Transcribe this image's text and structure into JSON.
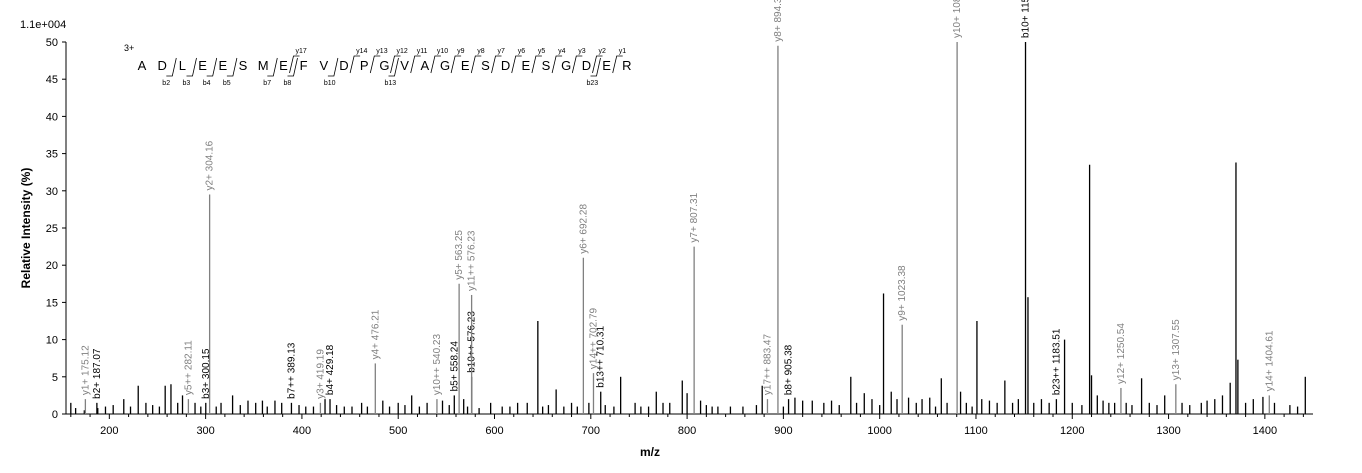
{
  "chart_data": {
    "type": "bar",
    "scale_label": "1.1e+004",
    "xlabel": "m/z",
    "ylabel": "Relative   Intensity (%)",
    "xlim": [
      155,
      1450
    ],
    "ylim": [
      0,
      50
    ],
    "xticks": [
      "200",
      "300",
      "400",
      "500",
      "600",
      "700",
      "800",
      "900",
      "1000",
      "1100",
      "1200",
      "1300",
      "1400"
    ],
    "yticks": [
      "0",
      "5",
      "10",
      "15",
      "20",
      "25",
      "30",
      "35",
      "40",
      "45",
      "50"
    ],
    "sequence": {
      "charge": "3+",
      "residues": [
        "A",
        "D",
        "L",
        "E",
        "E",
        "S",
        "M",
        "E",
        "F",
        "V",
        "D",
        "P",
        "G",
        "V",
        "A",
        "G",
        "E",
        "S",
        "D",
        "E",
        "S",
        "G",
        "D",
        "E",
        "R"
      ],
      "y_ions": [
        "y17",
        "y14",
        "y13",
        "y12",
        "y11",
        "y10",
        "y9",
        "y8",
        "y7",
        "y6",
        "y5",
        "y4",
        "y3",
        "y2",
        "y1"
      ],
      "b_ions": [
        "b2",
        "b3",
        "b4",
        "b5",
        "b7",
        "b8",
        "b10",
        "b13",
        "b23"
      ]
    },
    "labeled_peaks": [
      {
        "label": "y1+ 175.12",
        "x": 175.12,
        "y": 2.0,
        "ion": "y"
      },
      {
        "label": "b2+ 187.07",
        "x": 187.07,
        "y": 1.5,
        "ion": "b"
      },
      {
        "label": "y5++ 282.11",
        "x": 282.11,
        "y": 2.0,
        "ion": "y"
      },
      {
        "label": "b3+ 300.15",
        "x": 300.15,
        "y": 1.5,
        "ion": "b"
      },
      {
        "label": "y2+ 304.16",
        "x": 304.16,
        "y": 29.5,
        "ion": "y"
      },
      {
        "label": "b7++ 389.13",
        "x": 389.13,
        "y": 1.5,
        "ion": "b"
      },
      {
        "label": "y3+ 419.19",
        "x": 419.19,
        "y": 1.5,
        "ion": "y"
      },
      {
        "label": "b4+ 429.18",
        "x": 429.18,
        "y": 2.0,
        "ion": "b"
      },
      {
        "label": "y4+ 476.21",
        "x": 476.21,
        "y": 6.8,
        "ion": "y"
      },
      {
        "label": "y10++ 540.23",
        "x": 540.23,
        "y": 2.0,
        "ion": "y"
      },
      {
        "label": "b5+ 558.24",
        "x": 558.24,
        "y": 2.5,
        "ion": "b"
      },
      {
        "label": "y5+ 563.25",
        "x": 563.25,
        "y": 17.5,
        "ion": "y"
      },
      {
        "label": "b10++ 576.23",
        "x": 576.23,
        "y": 5.0,
        "ion": "b"
      },
      {
        "label": "y11++ 576.23",
        "x": 576.23,
        "y": 16.0,
        "ion": "y"
      },
      {
        "label": "y6+ 692.28",
        "x": 692.28,
        "y": 21.0,
        "ion": "y"
      },
      {
        "label": "y14++ 702.79",
        "x": 702.79,
        "y": 5.5,
        "ion": "y"
      },
      {
        "label": "b13++ 710.31",
        "x": 710.31,
        "y": 3.0,
        "ion": "b"
      },
      {
        "label": "y7+ 807.31",
        "x": 807.31,
        "y": 22.5,
        "ion": "y"
      },
      {
        "label": "y17++ 883.47",
        "x": 883.47,
        "y": 2.0,
        "ion": "y"
      },
      {
        "label": "y8+ 894.34",
        "x": 894.34,
        "y": 49.5,
        "ion": "y"
      },
      {
        "label": "b8+ 905.38",
        "x": 905.38,
        "y": 2.0,
        "ion": "b"
      },
      {
        "label": "y9+ 1023.38",
        "x": 1023.38,
        "y": 12.0,
        "ion": "y"
      },
      {
        "label": "y10+ 1080.41",
        "x": 1080.41,
        "y": 50.0,
        "ion": "y"
      },
      {
        "label": "b10+ 1151.45",
        "x": 1151.45,
        "y": 50.0,
        "ion": "b"
      },
      {
        "label": "b23++ 1183.51",
        "x": 1183.51,
        "y": 2.0,
        "ion": "b"
      },
      {
        "label": "y12+ 1250.54",
        "x": 1250.54,
        "y": 3.5,
        "ion": "y"
      },
      {
        "label": "y13+ 1307.55",
        "x": 1307.55,
        "y": 4.0,
        "ion": "y"
      },
      {
        "label": "y14+ 1404.61",
        "x": 1404.61,
        "y": 2.5,
        "ion": "y"
      }
    ],
    "peaks": [
      {
        "x": 160,
        "y": 1.5
      },
      {
        "x": 165,
        "y": 0.8
      },
      {
        "x": 174,
        "y": 0.5
      },
      {
        "x": 188,
        "y": 0.8
      },
      {
        "x": 196,
        "y": 1.0
      },
      {
        "x": 204,
        "y": 1.2
      },
      {
        "x": 215,
        "y": 2.0
      },
      {
        "x": 222,
        "y": 1.0
      },
      {
        "x": 230,
        "y": 3.8
      },
      {
        "x": 238,
        "y": 1.5
      },
      {
        "x": 245,
        "y": 1.2
      },
      {
        "x": 252,
        "y": 1.0
      },
      {
        "x": 258,
        "y": 3.8
      },
      {
        "x": 264,
        "y": 4.0
      },
      {
        "x": 271,
        "y": 1.5
      },
      {
        "x": 276,
        "y": 2.5
      },
      {
        "x": 289,
        "y": 1.5
      },
      {
        "x": 295,
        "y": 1.0
      },
      {
        "x": 311,
        "y": 1.0
      },
      {
        "x": 316,
        "y": 1.5
      },
      {
        "x": 328,
        "y": 2.5
      },
      {
        "x": 336,
        "y": 1.2
      },
      {
        "x": 344,
        "y": 1.8
      },
      {
        "x": 352,
        "y": 1.5
      },
      {
        "x": 359,
        "y": 1.8
      },
      {
        "x": 364,
        "y": 1.0
      },
      {
        "x": 372,
        "y": 1.8
      },
      {
        "x": 379,
        "y": 1.5
      },
      {
        "x": 397,
        "y": 1.2
      },
      {
        "x": 404,
        "y": 1.0
      },
      {
        "x": 412,
        "y": 1.0
      },
      {
        "x": 424,
        "y": 2.0
      },
      {
        "x": 436,
        "y": 1.2
      },
      {
        "x": 444,
        "y": 1.0
      },
      {
        "x": 452,
        "y": 1.0
      },
      {
        "x": 462,
        "y": 1.5
      },
      {
        "x": 468,
        "y": 1.0
      },
      {
        "x": 484,
        "y": 1.8
      },
      {
        "x": 491,
        "y": 1.0
      },
      {
        "x": 500,
        "y": 1.5
      },
      {
        "x": 507,
        "y": 1.2
      },
      {
        "x": 514,
        "y": 2.5
      },
      {
        "x": 522,
        "y": 1.0
      },
      {
        "x": 530,
        "y": 1.5
      },
      {
        "x": 546,
        "y": 1.8
      },
      {
        "x": 553,
        "y": 1.2
      },
      {
        "x": 568,
        "y": 2.0
      },
      {
        "x": 572,
        "y": 1.0
      },
      {
        "x": 584,
        "y": 0.8
      },
      {
        "x": 596,
        "y": 1.5
      },
      {
        "x": 608,
        "y": 1.0
      },
      {
        "x": 616,
        "y": 1.0
      },
      {
        "x": 624,
        "y": 1.5
      },
      {
        "x": 634,
        "y": 1.5
      },
      {
        "x": 645,
        "y": 12.5
      },
      {
        "x": 650,
        "y": 1.0
      },
      {
        "x": 656,
        "y": 1.2
      },
      {
        "x": 664,
        "y": 3.3
      },
      {
        "x": 672,
        "y": 1.0
      },
      {
        "x": 680,
        "y": 1.5
      },
      {
        "x": 686,
        "y": 1.0
      },
      {
        "x": 698,
        "y": 1.5
      },
      {
        "x": 715,
        "y": 1.2
      },
      {
        "x": 724,
        "y": 1.0
      },
      {
        "x": 731,
        "y": 5.0
      },
      {
        "x": 746,
        "y": 1.5
      },
      {
        "x": 752,
        "y": 1.0
      },
      {
        "x": 760,
        "y": 1.0
      },
      {
        "x": 768,
        "y": 3.0
      },
      {
        "x": 775,
        "y": 1.5
      },
      {
        "x": 782,
        "y": 1.5
      },
      {
        "x": 795,
        "y": 4.5
      },
      {
        "x": 800,
        "y": 2.8
      },
      {
        "x": 814,
        "y": 1.8
      },
      {
        "x": 820,
        "y": 1.2
      },
      {
        "x": 826,
        "y": 1.0
      },
      {
        "x": 832,
        "y": 1.0
      },
      {
        "x": 845,
        "y": 1.0
      },
      {
        "x": 858,
        "y": 1.0
      },
      {
        "x": 872,
        "y": 1.2
      },
      {
        "x": 878,
        "y": 3.8
      },
      {
        "x": 900,
        "y": 1.0
      },
      {
        "x": 912,
        "y": 2.2
      },
      {
        "x": 920,
        "y": 1.8
      },
      {
        "x": 930,
        "y": 1.8
      },
      {
        "x": 942,
        "y": 1.5
      },
      {
        "x": 950,
        "y": 1.8
      },
      {
        "x": 958,
        "y": 1.2
      },
      {
        "x": 970,
        "y": 5.0
      },
      {
        "x": 976,
        "y": 1.5
      },
      {
        "x": 984,
        "y": 2.8
      },
      {
        "x": 992,
        "y": 2.0
      },
      {
        "x": 1000,
        "y": 1.2
      },
      {
        "x": 1004,
        "y": 16.2
      },
      {
        "x": 1012,
        "y": 3.0
      },
      {
        "x": 1018,
        "y": 2.0
      },
      {
        "x": 1030,
        "y": 2.2
      },
      {
        "x": 1038,
        "y": 1.5
      },
      {
        "x": 1044,
        "y": 2.0
      },
      {
        "x": 1052,
        "y": 2.2
      },
      {
        "x": 1058,
        "y": 1.0
      },
      {
        "x": 1064,
        "y": 4.8
      },
      {
        "x": 1070,
        "y": 1.5
      },
      {
        "x": 1084,
        "y": 3.0
      },
      {
        "x": 1090,
        "y": 1.5
      },
      {
        "x": 1096,
        "y": 1.0
      },
      {
        "x": 1101,
        "y": 12.5
      },
      {
        "x": 1106,
        "y": 2.0
      },
      {
        "x": 1114,
        "y": 1.8
      },
      {
        "x": 1122,
        "y": 1.5
      },
      {
        "x": 1130,
        "y": 4.5
      },
      {
        "x": 1138,
        "y": 1.5
      },
      {
        "x": 1144,
        "y": 2.0
      },
      {
        "x": 1154,
        "y": 15.7
      },
      {
        "x": 1160,
        "y": 1.5
      },
      {
        "x": 1168,
        "y": 2.0
      },
      {
        "x": 1176,
        "y": 1.5
      },
      {
        "x": 1192,
        "y": 10.0
      },
      {
        "x": 1200,
        "y": 1.5
      },
      {
        "x": 1210,
        "y": 1.2
      },
      {
        "x": 1218,
        "y": 33.5
      },
      {
        "x": 1220,
        "y": 5.2
      },
      {
        "x": 1226,
        "y": 2.5
      },
      {
        "x": 1232,
        "y": 1.8
      },
      {
        "x": 1238,
        "y": 1.5
      },
      {
        "x": 1244,
        "y": 1.5
      },
      {
        "x": 1256,
        "y": 1.5
      },
      {
        "x": 1262,
        "y": 1.2
      },
      {
        "x": 1272,
        "y": 4.8
      },
      {
        "x": 1280,
        "y": 1.5
      },
      {
        "x": 1288,
        "y": 1.2
      },
      {
        "x": 1296,
        "y": 2.5
      },
      {
        "x": 1314,
        "y": 1.5
      },
      {
        "x": 1322,
        "y": 1.2
      },
      {
        "x": 1334,
        "y": 1.5
      },
      {
        "x": 1340,
        "y": 1.8
      },
      {
        "x": 1348,
        "y": 2.0
      },
      {
        "x": 1356,
        "y": 2.5
      },
      {
        "x": 1364,
        "y": 4.2
      },
      {
        "x": 1370,
        "y": 33.8
      },
      {
        "x": 1372,
        "y": 7.3
      },
      {
        "x": 1380,
        "y": 1.5
      },
      {
        "x": 1388,
        "y": 2.0
      },
      {
        "x": 1398,
        "y": 2.3
      },
      {
        "x": 1410,
        "y": 1.5
      },
      {
        "x": 1426,
        "y": 1.2
      },
      {
        "x": 1434,
        "y": 1.0
      },
      {
        "x": 1442,
        "y": 5.0
      }
    ],
    "colors": {
      "b_ion": "#000000",
      "y_ion": "#808080",
      "unassigned": "#000000"
    }
  }
}
